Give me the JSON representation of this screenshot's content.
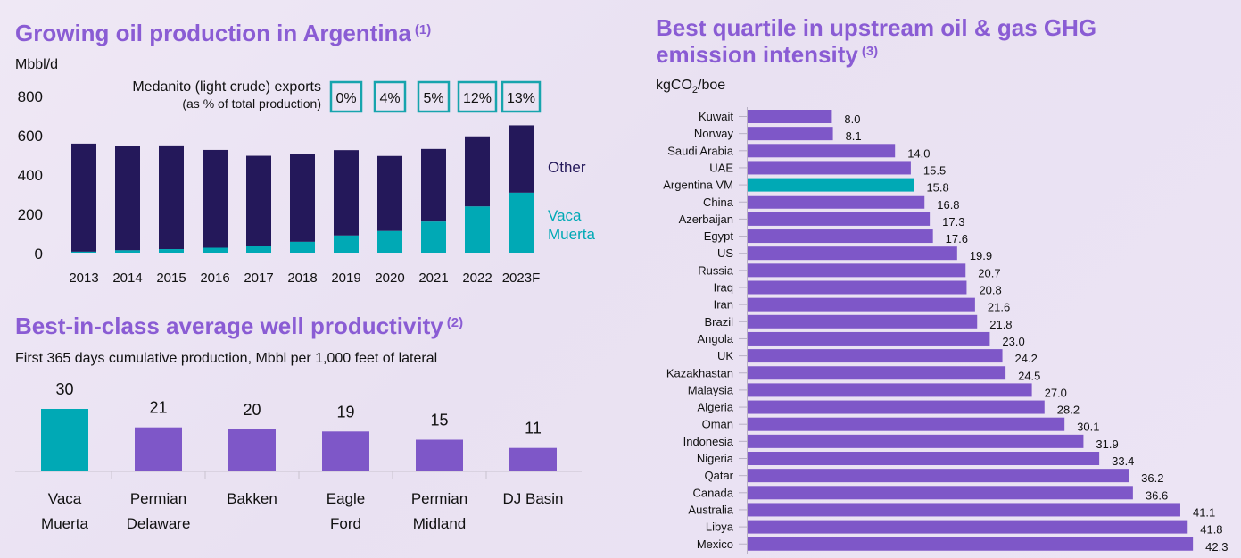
{
  "colors": {
    "title": "#8a5cd4",
    "dark": "#24185a",
    "teal": "#00a9b5",
    "purple": "#7e57c8",
    "box_border": "#17a4ad"
  },
  "panel1": {
    "title": "Growing oil production in Argentina",
    "note": "(1)",
    "unit": "Mbbl/d",
    "exports_label_line1": "Medanito (light crude) exports",
    "exports_label_line2": "(as % of total production)",
    "legend_other": "Other",
    "legend_vm_line1": "Vaca",
    "legend_vm_line2": "Muerta"
  },
  "panel2": {
    "title": "Best-in-class average well productivity",
    "note": "(2)",
    "subtitle": "First 365 days cumulative production, Mbbl per 1,000 feet of lateral"
  },
  "panel3": {
    "title_line1": "Best quartile in upstream oil & gas GHG",
    "title_line2": "emission intensity",
    "note": "(3)",
    "unit_prefix": "kgCO",
    "unit_sub": "2",
    "unit_suffix": "/boe"
  },
  "chart_data": [
    {
      "type": "bar",
      "stacked": true,
      "categories": [
        "2013",
        "2014",
        "2015",
        "2016",
        "2017",
        "2018",
        "2019",
        "2020",
        "2021",
        "2022",
        "2023F"
      ],
      "series": [
        {
          "name": "Vaca Muerta",
          "color": "#00a9b5",
          "values": [
            5,
            12,
            18,
            25,
            32,
            55,
            87,
            110,
            158,
            235,
            305
          ]
        },
        {
          "name": "Other",
          "color": "#24185a",
          "values": [
            550,
            533,
            528,
            498,
            461,
            448,
            435,
            382,
            370,
            357,
            343
          ]
        }
      ],
      "exports_pct": [
        "0%",
        "4%",
        "5%",
        "12%",
        "13%"
      ],
      "yticks": [
        0,
        200,
        400,
        600,
        800
      ],
      "ylim": [
        0,
        800
      ],
      "ylabel": "Mbbl/d"
    },
    {
      "type": "bar",
      "categories": [
        [
          "Vaca",
          "Muerta"
        ],
        [
          "Permian",
          "Delaware"
        ],
        [
          "Bakken"
        ],
        [
          "Eagle",
          "Ford"
        ],
        [
          "Permian",
          "Midland"
        ],
        [
          "DJ Basin"
        ]
      ],
      "values": [
        30,
        21,
        20,
        19,
        15,
        11
      ],
      "highlight_index": 0,
      "ylim": [
        0,
        30
      ]
    },
    {
      "type": "bar",
      "orientation": "horizontal",
      "categories": [
        "Kuwait",
        "Norway",
        "Saudi Arabia",
        "UAE",
        "Argentina VM",
        "China",
        "Azerbaijan",
        "Egypt",
        "US",
        "Russia",
        "Iraq",
        "Iran",
        "Brazil",
        "Angola",
        "UK",
        "Kazakhastan",
        "Malaysia",
        "Algeria",
        "Oman",
        "Indonesia",
        "Nigeria",
        "Qatar",
        "Canada",
        "Australia",
        "Libya",
        "Mexico"
      ],
      "values": [
        8.0,
        8.1,
        14.0,
        15.5,
        15.8,
        16.8,
        17.3,
        17.6,
        19.9,
        20.7,
        20.8,
        21.6,
        21.8,
        23.0,
        24.2,
        24.5,
        27.0,
        28.2,
        30.1,
        31.9,
        33.4,
        36.2,
        36.6,
        41.1,
        41.8,
        42.3
      ],
      "value_labels": [
        "8.0",
        "8.1",
        "14.0",
        "15.5",
        "15.8",
        "16.8",
        "17.3",
        "17.6",
        "19.9",
        "20.7",
        "20.8",
        "21.6",
        "21.8",
        "23.0",
        "24.2",
        "24.5",
        "27.0",
        "28.2",
        "30.1",
        "31.9",
        "33.4",
        "36.2",
        "36.6",
        "41.1",
        "41.8",
        "42.3"
      ],
      "highlight_index": 4,
      "xlabel": "kgCO2/boe"
    }
  ]
}
